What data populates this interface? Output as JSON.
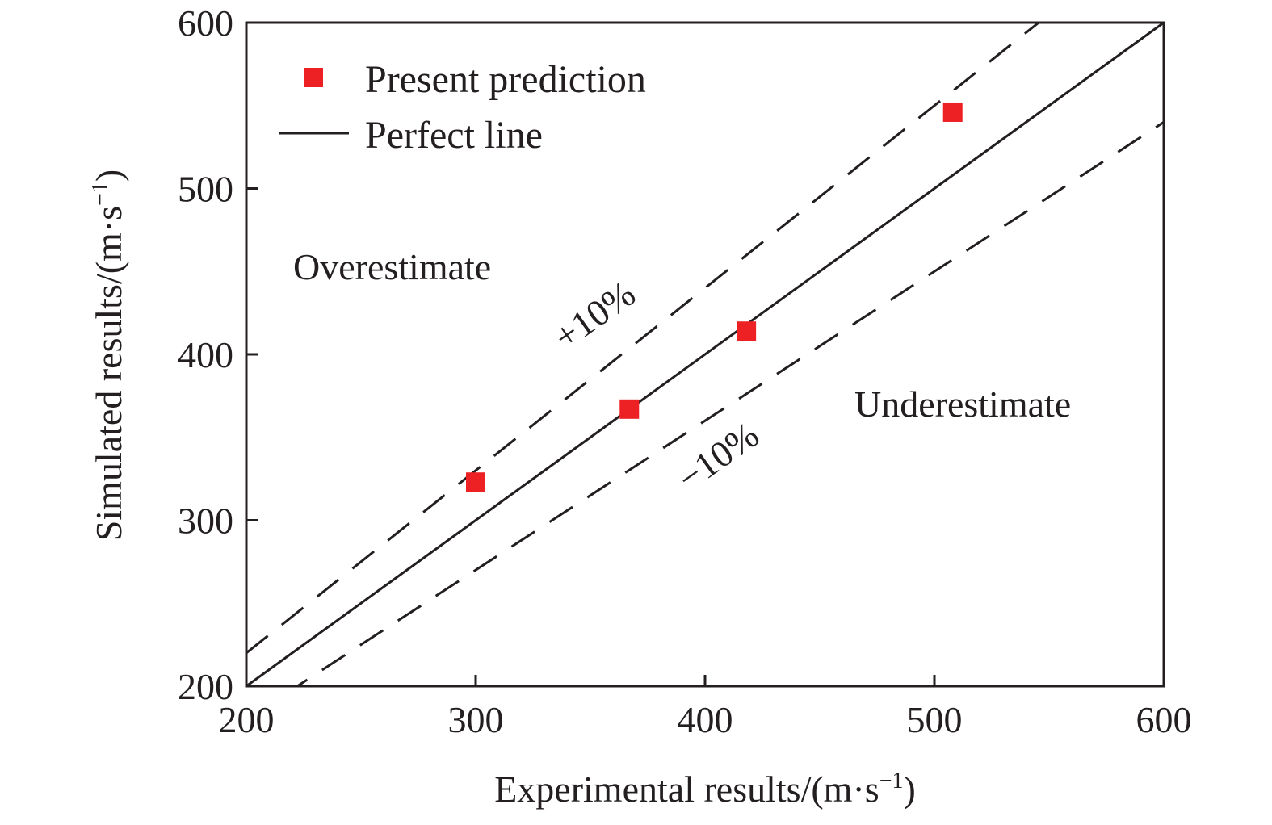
{
  "chart_data": {
    "type": "scatter",
    "title": "",
    "xlabel": "Experimental results/(m·s",
    "ylabel": "Simulated results/(m·s",
    "unit_superscript": "−1",
    "unit_close": ")",
    "xlim": [
      200,
      600
    ],
    "ylim": [
      200,
      600
    ],
    "xticks": [
      200,
      300,
      400,
      500,
      600
    ],
    "yticks": [
      200,
      300,
      400,
      500,
      600
    ],
    "grid": false,
    "legend_position": "top-left",
    "series": [
      {
        "name": "Present prediction",
        "kind": "marker",
        "marker": "square",
        "color": "#ed2024",
        "x": [
          300,
          367,
          418,
          508
        ],
        "y": [
          323,
          367,
          414,
          546
        ]
      },
      {
        "name": "Perfect line",
        "kind": "line",
        "style": "solid",
        "color": "#231f20",
        "slope": 1.0
      },
      {
        "kind": "line",
        "style": "dashed",
        "color": "#231f20",
        "slope": 1.1
      },
      {
        "kind": "line",
        "style": "dashed",
        "color": "#231f20",
        "slope": 0.9
      }
    ],
    "annotations": {
      "plus_band": "+10%",
      "minus_band": "−10%",
      "over_region": "Overestimate",
      "under_region": "Underestimate"
    }
  }
}
